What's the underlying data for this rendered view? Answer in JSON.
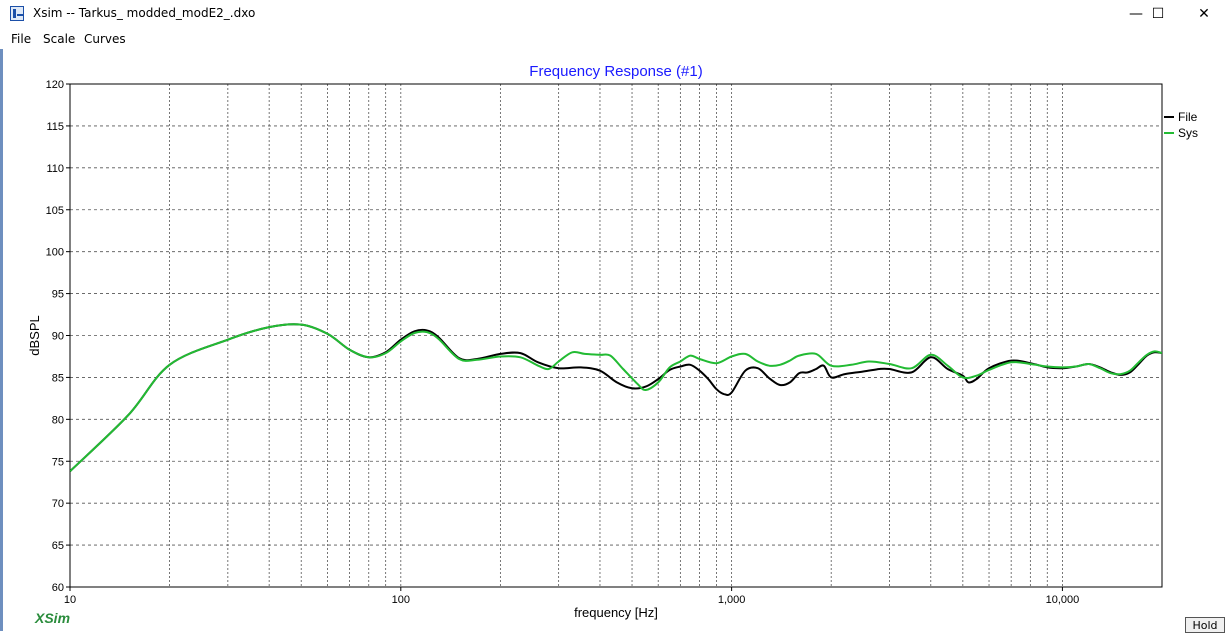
{
  "window": {
    "title": "Xsim -- Tarkus_ modded_modE2_.dxo",
    "minimize_glyph": "—",
    "maximize_glyph": "☐",
    "close_glyph": "✕"
  },
  "menu": [
    {
      "label": "File"
    },
    {
      "label": "Scale"
    },
    {
      "label": "Curves"
    }
  ],
  "brand": "XSim",
  "hold_label": "Hold",
  "colors": {
    "title_blue": "#1a1aff",
    "file_curve": "#000000",
    "sys_curve": "#22bb33",
    "grid": "#555555"
  },
  "chart_data": {
    "type": "line",
    "title": "Frequency Response (#1)",
    "xlabel": "frequency [Hz]",
    "ylabel": "dBSPL",
    "x_scale": "log",
    "xlim": [
      10,
      20000
    ],
    "ylim": [
      60,
      120
    ],
    "x_tick_labels": [
      {
        "value": 10,
        "label": "10"
      },
      {
        "value": 100,
        "label": "100"
      },
      {
        "value": 1000,
        "label": "1,000"
      },
      {
        "value": 10000,
        "label": "10,000"
      }
    ],
    "y_ticks": [
      60,
      65,
      70,
      75,
      80,
      85,
      90,
      95,
      100,
      105,
      110,
      115,
      120
    ],
    "grid": true,
    "legend_position": "right",
    "series": [
      {
        "name": "File",
        "color": "#000000",
        "points": [
          [
            10,
            73.8
          ],
          [
            15,
            80.5
          ],
          [
            20,
            86.5
          ],
          [
            30,
            89.5
          ],
          [
            40,
            91.0
          ],
          [
            50,
            91.3
          ],
          [
            60,
            90.2
          ],
          [
            70,
            88.3
          ],
          [
            80,
            87.4
          ],
          [
            90,
            88.0
          ],
          [
            100,
            89.5
          ],
          [
            110,
            90.5
          ],
          [
            120,
            90.6
          ],
          [
            130,
            89.8
          ],
          [
            150,
            87.3
          ],
          [
            170,
            87.2
          ],
          [
            200,
            87.8
          ],
          [
            230,
            87.9
          ],
          [
            260,
            86.8
          ],
          [
            300,
            86.1
          ],
          [
            350,
            86.2
          ],
          [
            400,
            85.8
          ],
          [
            450,
            84.4
          ],
          [
            500,
            83.7
          ],
          [
            550,
            83.9
          ],
          [
            600,
            84.8
          ],
          [
            650,
            85.9
          ],
          [
            700,
            86.3
          ],
          [
            750,
            86.5
          ],
          [
            800,
            85.8
          ],
          [
            850,
            84.8
          ],
          [
            900,
            83.6
          ],
          [
            950,
            83.0
          ],
          [
            1000,
            83.2
          ],
          [
            1100,
            85.8
          ],
          [
            1200,
            86.1
          ],
          [
            1300,
            84.9
          ],
          [
            1400,
            84.1
          ],
          [
            1500,
            84.4
          ],
          [
            1600,
            85.5
          ],
          [
            1700,
            85.6
          ],
          [
            1800,
            86.0
          ],
          [
            1900,
            86.4
          ],
          [
            2000,
            85.0
          ],
          [
            2200,
            85.4
          ],
          [
            2500,
            85.7
          ],
          [
            2800,
            86.0
          ],
          [
            3000,
            86.0
          ],
          [
            3500,
            85.6
          ],
          [
            4000,
            87.4
          ],
          [
            4500,
            86.0
          ],
          [
            5000,
            85.2
          ],
          [
            5200,
            84.4
          ],
          [
            5500,
            84.8
          ],
          [
            6000,
            86.1
          ],
          [
            7000,
            87.0
          ],
          [
            8000,
            86.7
          ],
          [
            9000,
            86.2
          ],
          [
            10000,
            86.1
          ],
          [
            11000,
            86.3
          ],
          [
            12000,
            86.6
          ],
          [
            13000,
            86.2
          ],
          [
            14000,
            85.6
          ],
          [
            15000,
            85.3
          ],
          [
            16000,
            85.6
          ],
          [
            17000,
            86.6
          ],
          [
            18000,
            87.6
          ],
          [
            19000,
            88.0
          ],
          [
            20000,
            87.9
          ]
        ]
      },
      {
        "name": "Sys",
        "color": "#22bb33",
        "points": [
          [
            10,
            73.8
          ],
          [
            15,
            80.5
          ],
          [
            20,
            86.5
          ],
          [
            30,
            89.5
          ],
          [
            40,
            91.0
          ],
          [
            50,
            91.3
          ],
          [
            60,
            90.2
          ],
          [
            70,
            88.3
          ],
          [
            80,
            87.4
          ],
          [
            90,
            87.9
          ],
          [
            100,
            89.3
          ],
          [
            110,
            90.3
          ],
          [
            120,
            90.4
          ],
          [
            130,
            89.6
          ],
          [
            150,
            87.2
          ],
          [
            170,
            87.1
          ],
          [
            200,
            87.5
          ],
          [
            230,
            87.4
          ],
          [
            260,
            86.4
          ],
          [
            280,
            86.0
          ],
          [
            300,
            86.9
          ],
          [
            330,
            88.0
          ],
          [
            360,
            87.8
          ],
          [
            400,
            87.7
          ],
          [
            430,
            87.6
          ],
          [
            470,
            86.0
          ],
          [
            520,
            84.2
          ],
          [
            550,
            83.5
          ],
          [
            600,
            84.4
          ],
          [
            650,
            86.2
          ],
          [
            700,
            86.9
          ],
          [
            750,
            87.6
          ],
          [
            800,
            87.2
          ],
          [
            900,
            86.7
          ],
          [
            1000,
            87.5
          ],
          [
            1100,
            87.8
          ],
          [
            1200,
            86.9
          ],
          [
            1300,
            86.4
          ],
          [
            1400,
            86.5
          ],
          [
            1500,
            87.0
          ],
          [
            1600,
            87.6
          ],
          [
            1800,
            87.8
          ],
          [
            2000,
            86.4
          ],
          [
            2300,
            86.5
          ],
          [
            2600,
            86.9
          ],
          [
            3000,
            86.6
          ],
          [
            3500,
            86.1
          ],
          [
            4000,
            87.7
          ],
          [
            4500,
            86.4
          ],
          [
            5000,
            85.0
          ],
          [
            5500,
            85.2
          ],
          [
            6000,
            85.9
          ],
          [
            7000,
            86.8
          ],
          [
            8000,
            86.6
          ],
          [
            9000,
            86.3
          ],
          [
            10000,
            86.2
          ],
          [
            11000,
            86.3
          ],
          [
            12000,
            86.6
          ],
          [
            13000,
            86.1
          ],
          [
            14000,
            85.5
          ],
          [
            15000,
            85.4
          ],
          [
            16000,
            85.8
          ],
          [
            17000,
            86.8
          ],
          [
            18000,
            87.7
          ],
          [
            19000,
            88.1
          ],
          [
            20000,
            87.9
          ]
        ]
      }
    ]
  }
}
